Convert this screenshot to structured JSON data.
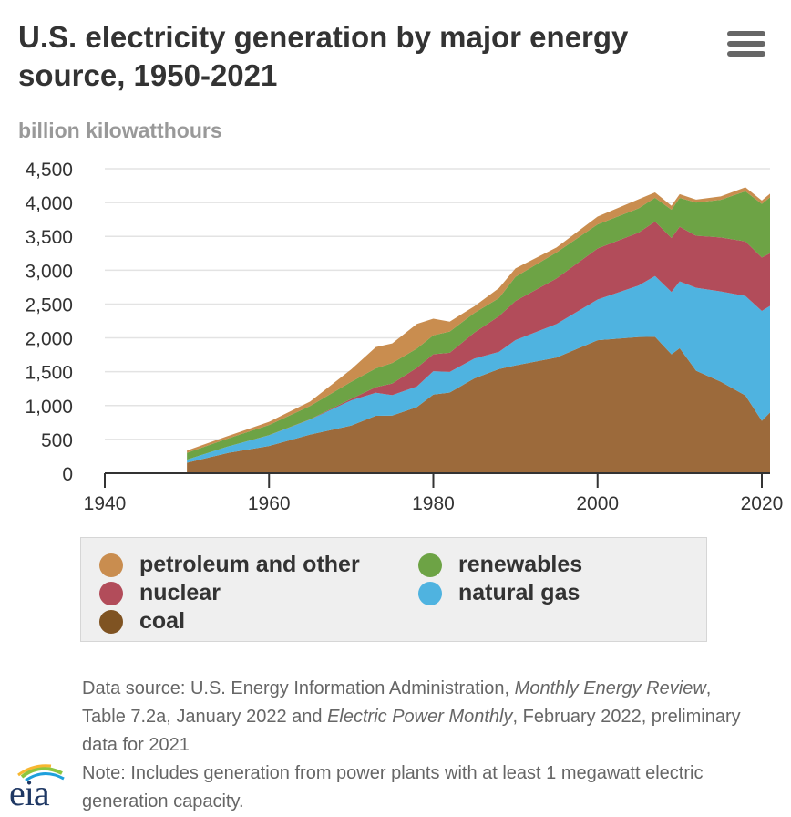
{
  "header": {
    "title": "U.S. electricity generation by major energy source, 1950-2021",
    "menu_icon": "hamburger-menu-icon"
  },
  "chart_data": {
    "type": "area",
    "stacked": true,
    "ylabel": "billion kilowatthours",
    "ylim": [
      0,
      4500
    ],
    "xlim": [
      1940,
      2021
    ],
    "y_ticks": [
      "0",
      "500",
      "1,000",
      "1,500",
      "2,000",
      "2,500",
      "3,000",
      "3,500",
      "4,000",
      "4,500"
    ],
    "x_ticks": [
      "1940",
      "1960",
      "1980",
      "2000",
      "2020"
    ],
    "grid": true,
    "legend_position": "bottom",
    "x": [
      1950,
      1955,
      1960,
      1965,
      1970,
      1973,
      1975,
      1978,
      1980,
      1982,
      1985,
      1988,
      1990,
      1995,
      2000,
      2005,
      2007,
      2009,
      2010,
      2012,
      2015,
      2018,
      2020,
      2021
    ],
    "series": [
      {
        "name": "coal",
        "color": "#9c6a3b",
        "values": [
          155,
          300,
          403,
          571,
          704,
          848,
          853,
          976,
          1162,
          1192,
          1402,
          1540,
          1594,
          1709,
          1966,
          2013,
          2016,
          1756,
          1847,
          1514,
          1352,
          1149,
          774,
          898
        ]
      },
      {
        "name": "natural gas",
        "color": "#4fb3e0",
        "values": [
          45,
          95,
          158,
          222,
          373,
          341,
          300,
          305,
          346,
          305,
          292,
          253,
          373,
          496,
          601,
          761,
          897,
          921,
          988,
          1226,
          1335,
          1469,
          1624,
          1575
        ]
      },
      {
        "name": "nuclear",
        "color": "#b24c5a",
        "values": [
          0,
          0,
          1,
          4,
          22,
          83,
          173,
          276,
          251,
          283,
          384,
          527,
          577,
          673,
          754,
          782,
          806,
          799,
          807,
          769,
          797,
          807,
          790,
          778
        ]
      },
      {
        "name": "renewables",
        "color": "#6da345",
        "values": [
          101,
          118,
          150,
          197,
          252,
          278,
          303,
          285,
          279,
          314,
          290,
          269,
          357,
          384,
          356,
          358,
          352,
          417,
          427,
          491,
          557,
          742,
          792,
          826
        ]
      },
      {
        "name": "petroleum and other",
        "color": "#c98d4f",
        "values": [
          34,
          37,
          48,
          66,
          184,
          314,
          289,
          365,
          246,
          146,
          100,
          148,
          126,
          74,
          115,
          135,
          79,
          60,
          56,
          43,
          50,
          58,
          50,
          54
        ]
      }
    ]
  },
  "legend": {
    "petroleum": "petroleum and other",
    "renewables": "renewables",
    "nuclear": "nuclear",
    "natural_gas": "natural gas",
    "coal": "coal"
  },
  "footer": {
    "source_prefix": "Data source: U.S. Energy Information Administration, ",
    "source_pub1": "Monthly Energy Review",
    "source_mid": ", Table 7.2a, January 2022 and ",
    "source_pub2": "Electric Power Monthly",
    "source_suffix": ", February 2022, preliminary data for 2021",
    "note": "Note: Includes generation from power plants with at least 1 megawatt electric generation capacity.",
    "logo_text": "eia"
  }
}
